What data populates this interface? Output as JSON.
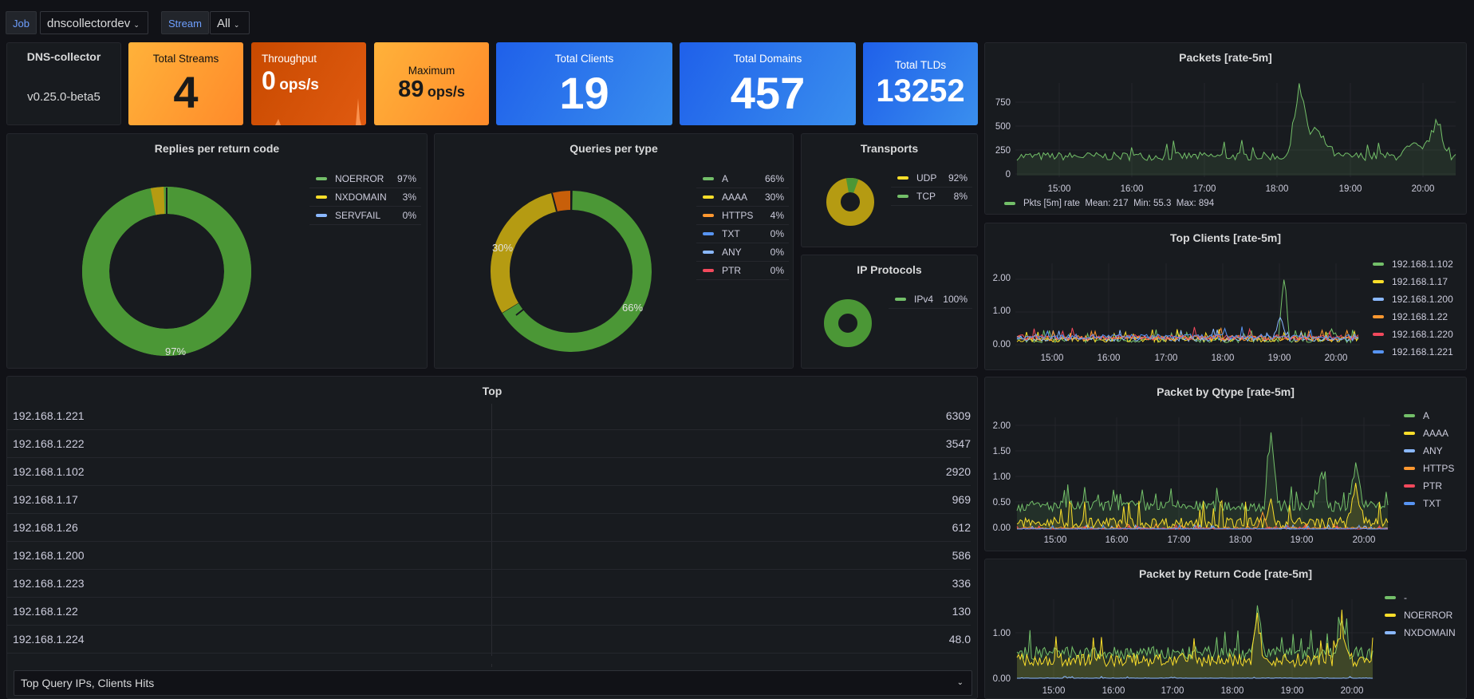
{
  "vars": {
    "job_label": "Job",
    "job_value": "dnscollectordev",
    "stream_label": "Stream",
    "stream_value": "All"
  },
  "stats": {
    "collector": {
      "title": "DNS-collector",
      "version": "v0.25.0-beta5"
    },
    "streams": {
      "title": "Total Streams",
      "value": "4"
    },
    "throughput": {
      "title": "Throughput",
      "value": "0",
      "unit": "ops/s"
    },
    "maximum": {
      "title": "Maximum",
      "value": "89",
      "unit": "ops/s"
    },
    "clients": {
      "title": "Total Clients",
      "value": "19"
    },
    "domains": {
      "title": "Total Domains",
      "value": "457"
    },
    "tlds": {
      "title": "Total TLDs",
      "value": "13252"
    }
  },
  "colors": {
    "green": "#73bf69",
    "yellow": "#fade2a",
    "blue": "#8ab8ff",
    "orange": "#ff9830",
    "red": "#f2495c",
    "blue2": "#5794f2",
    "orange_stat": "#ff780a",
    "blue_stat": "#1f60c4"
  },
  "rcode": {
    "title": "Replies per return code",
    "label": "97%",
    "legend": [
      {
        "name": "NOERROR",
        "pct": "97%",
        "color": "#73bf69"
      },
      {
        "name": "NXDOMAIN",
        "pct": "3%",
        "color": "#fade2a"
      },
      {
        "name": "SERVFAIL",
        "pct": "0%",
        "color": "#8ab8ff"
      }
    ]
  },
  "qtype": {
    "title": "Queries per type",
    "label_a": "66%",
    "label_aaaa": "30%",
    "legend": [
      {
        "name": "A",
        "pct": "66%",
        "color": "#73bf69"
      },
      {
        "name": "AAAA",
        "pct": "30%",
        "color": "#fade2a"
      },
      {
        "name": "HTTPS",
        "pct": "4%",
        "color": "#ff9830"
      },
      {
        "name": "TXT",
        "pct": "0%",
        "color": "#5794f2"
      },
      {
        "name": "ANY",
        "pct": "0%",
        "color": "#8ab8ff"
      },
      {
        "name": "PTR",
        "pct": "0%",
        "color": "#f2495c"
      }
    ]
  },
  "transports": {
    "title": "Transports",
    "legend": [
      {
        "name": "UDP",
        "pct": "92%",
        "color": "#fade2a"
      },
      {
        "name": "TCP",
        "pct": "8%",
        "color": "#73bf69"
      }
    ]
  },
  "ipproto": {
    "title": "IP Protocols",
    "legend": [
      {
        "name": "IPv4",
        "pct": "100%",
        "color": "#73bf69"
      }
    ]
  },
  "top": {
    "title": "Top",
    "rows": [
      {
        "k": "192.168.1.221",
        "v": "6309"
      },
      {
        "k": "192.168.1.222",
        "v": "3547"
      },
      {
        "k": "192.168.1.102",
        "v": "2920"
      },
      {
        "k": "192.168.1.17",
        "v": "969"
      },
      {
        "k": "192.168.1.26",
        "v": "612"
      },
      {
        "k": "192.168.1.200",
        "v": "586"
      },
      {
        "k": "192.168.1.223",
        "v": "336"
      },
      {
        "k": "192.168.1.22",
        "v": "130"
      },
      {
        "k": "192.168.1.224",
        "v": "48.0"
      }
    ],
    "footer": "Top Query IPs, Clients Hits"
  },
  "packets": {
    "title": "Packets [rate-5m]",
    "legend_name": "Pkts [5m] rate",
    "mean": "Mean: 217",
    "min": "Min: 55.3",
    "max": "Max: 894",
    "yticks": [
      "750",
      "500",
      "250",
      "0"
    ],
    "xticks": [
      "15:00",
      "16:00",
      "17:00",
      "18:00",
      "19:00",
      "20:00"
    ]
  },
  "topclients": {
    "title": "Top Clients [rate-5m]",
    "yticks": [
      "2.00",
      "1.00",
      "0.00"
    ],
    "xticks": [
      "15:00",
      "16:00",
      "17:00",
      "18:00",
      "19:00",
      "20:00"
    ],
    "legend": [
      {
        "name": "192.168.1.102",
        "color": "#73bf69"
      },
      {
        "name": "192.168.1.17",
        "color": "#fade2a"
      },
      {
        "name": "192.168.1.200",
        "color": "#8ab8ff"
      },
      {
        "name": "192.168.1.22",
        "color": "#ff9830"
      },
      {
        "name": "192.168.1.220",
        "color": "#f2495c"
      },
      {
        "name": "192.168.1.221",
        "color": "#5794f2"
      }
    ]
  },
  "qtypechart": {
    "title": "Packet by Qtype [rate-5m]",
    "yticks": [
      "2.00",
      "1.50",
      "1.00",
      "0.50",
      "0.00"
    ],
    "xticks": [
      "15:00",
      "16:00",
      "17:00",
      "18:00",
      "19:00",
      "20:00"
    ],
    "legend": [
      {
        "name": "A",
        "color": "#73bf69"
      },
      {
        "name": "AAAA",
        "color": "#fade2a"
      },
      {
        "name": "ANY",
        "color": "#8ab8ff"
      },
      {
        "name": "HTTPS",
        "color": "#ff9830"
      },
      {
        "name": "PTR",
        "color": "#f2495c"
      },
      {
        "name": "TXT",
        "color": "#5794f2"
      }
    ]
  },
  "rcodechart": {
    "title": "Packet by Return Code [rate-5m]",
    "yticks": [
      "1.00",
      "0.00"
    ],
    "xticks": [
      "15:00",
      "16:00",
      "17:00",
      "18:00",
      "19:00",
      "20:00"
    ],
    "legend": [
      {
        "name": "-",
        "color": "#73bf69"
      },
      {
        "name": "NOERROR",
        "color": "#fade2a"
      },
      {
        "name": "NXDOMAIN",
        "color": "#8ab8ff"
      }
    ]
  }
}
